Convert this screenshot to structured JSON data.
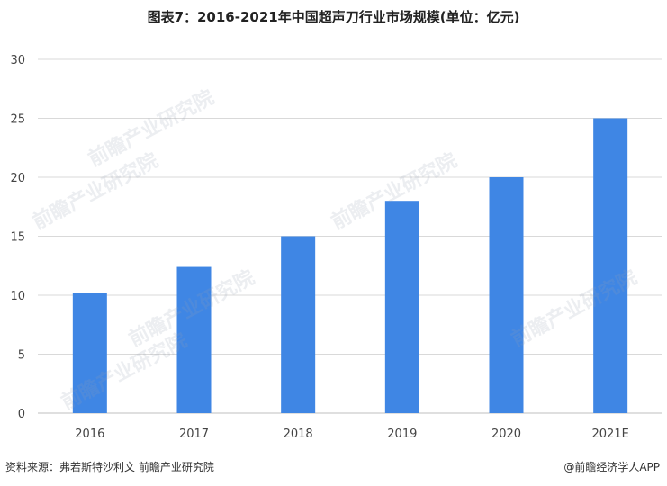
{
  "header": {
    "title": "图表7：2016-2021年中国超声刀行业市场规模(单位：亿元)"
  },
  "footer": {
    "source": "资料来源：弗若斯特沙利文 前瞻产业研究院",
    "credit": "@前瞻经济学人APP"
  },
  "watermark": {
    "text": "前瞻产业研究院"
  },
  "colors": {
    "bar": "#3f86e4",
    "grid": "#d9d9d9",
    "axis": "#bfbfbf"
  },
  "chart_data": {
    "type": "bar",
    "title": "图表7：2016-2021年中国超声刀行业市场规模(单位：亿元)",
    "categories": [
      "2016",
      "2017",
      "2018",
      "2019",
      "2020",
      "2021E"
    ],
    "values": [
      10.2,
      12.4,
      15.0,
      18.0,
      20.0,
      25.0
    ],
    "y_ticks": [
      "0",
      "5",
      "10",
      "15",
      "20",
      "25",
      "30"
    ],
    "ylim": [
      0,
      30
    ],
    "xlabel": "",
    "ylabel": "",
    "grid": true,
    "legend": "none"
  }
}
